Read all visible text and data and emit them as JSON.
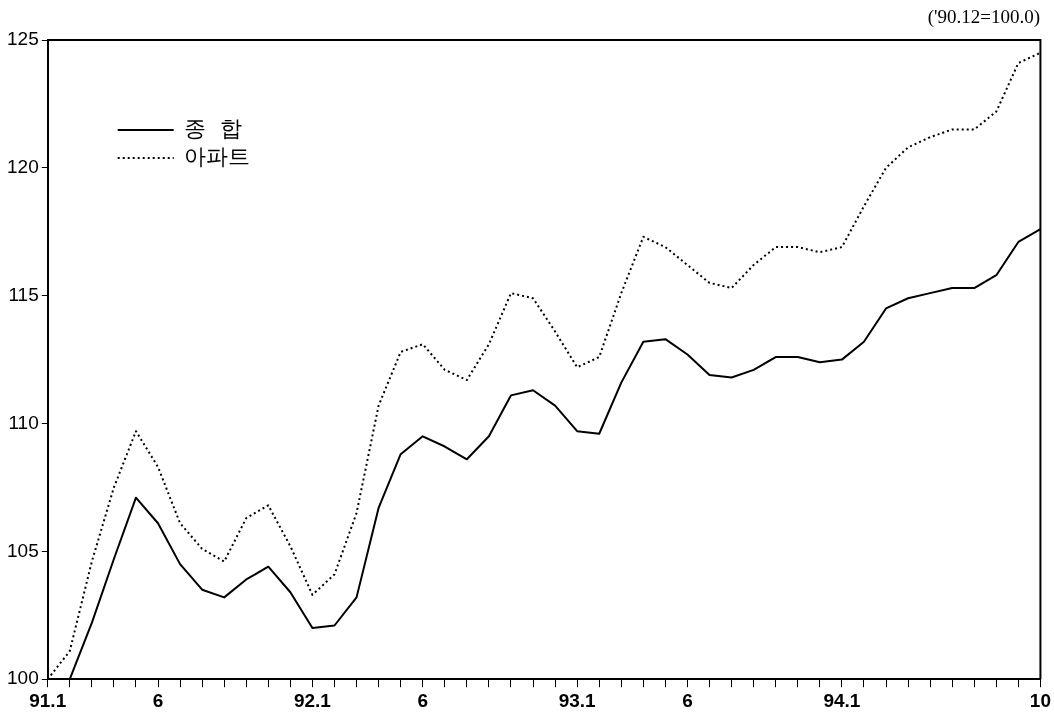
{
  "chart_data": {
    "type": "line",
    "categories": [
      "91.1",
      null,
      null,
      null,
      null,
      "6",
      null,
      null,
      null,
      null,
      null,
      null,
      "92.1",
      null,
      null,
      null,
      null,
      "6",
      null,
      null,
      null,
      null,
      null,
      null,
      "93.1",
      null,
      null,
      null,
      null,
      "6",
      null,
      null,
      null,
      null,
      null,
      null,
      "94.1",
      null,
      null,
      null,
      null,
      null,
      null,
      null,
      null,
      "10"
    ],
    "series": [
      {
        "name": "종  합",
        "color": "#000000",
        "line_style": "solid",
        "values": [
          null,
          100.0,
          102.2,
          104.7,
          107.1,
          106.1,
          104.5,
          103.5,
          103.2,
          103.9,
          104.4,
          103.4,
          102.0,
          102.1,
          103.2,
          106.7,
          108.8,
          109.5,
          109.1,
          108.6,
          109.5,
          111.1,
          111.3,
          110.7,
          109.7,
          109.6,
          111.6,
          113.2,
          113.3,
          112.7,
          111.9,
          111.8,
          112.1,
          112.6,
          112.6,
          112.4,
          112.5,
          113.2,
          114.5,
          114.9,
          115.1,
          115.3,
          115.3,
          115.8,
          117.1,
          117.6
        ]
      },
      {
        "name": "아파트",
        "color": "#000000",
        "line_style": "dotted",
        "values": [
          100.0,
          101.1,
          104.6,
          107.5,
          109.7,
          108.3,
          106.1,
          105.1,
          104.6,
          106.3,
          106.8,
          105.2,
          103.3,
          104.1,
          106.5,
          110.7,
          112.8,
          113.1,
          112.1,
          111.7,
          113.1,
          115.1,
          114.9,
          113.6,
          112.2,
          112.6,
          115.1,
          117.3,
          116.9,
          116.2,
          115.5,
          115.3,
          116.2,
          116.9,
          116.9,
          116.7,
          116.9,
          118.5,
          120.0,
          120.8,
          121.2,
          121.5,
          121.5,
          122.2,
          124.1,
          124.5
        ]
      }
    ],
    "ylim": [
      100,
      125
    ],
    "yticks": [
      100,
      105,
      110,
      115,
      120,
      125
    ],
    "grid": false,
    "legend": "top left",
    "marker": "none",
    "annotations": [
      "('90.12=100.0)"
    ]
  }
}
